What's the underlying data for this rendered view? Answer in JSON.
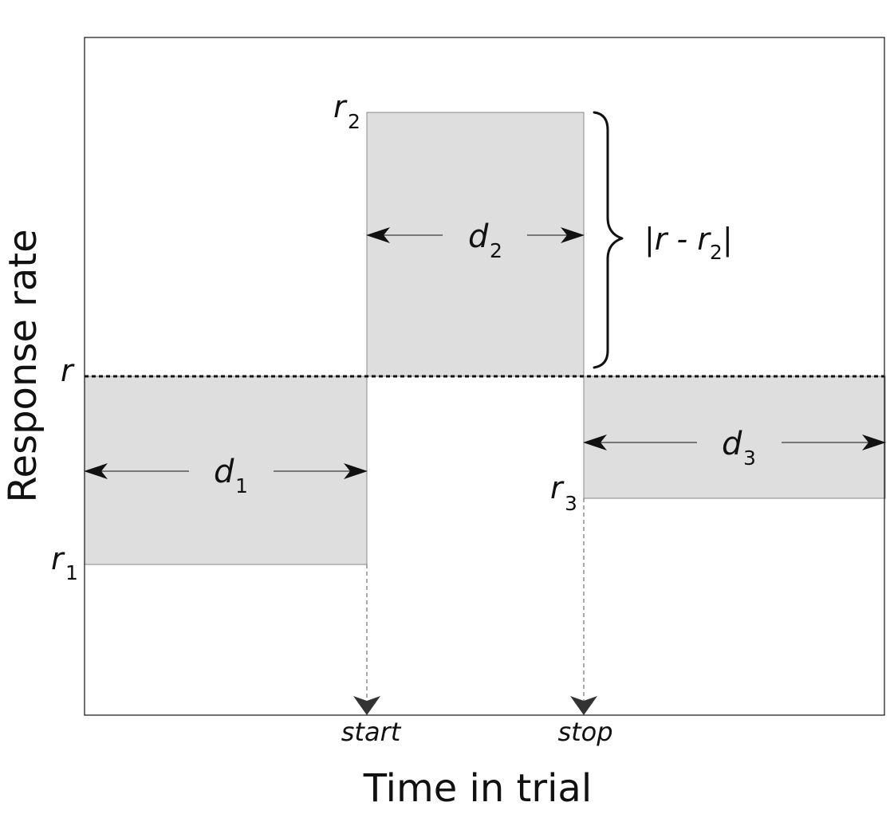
{
  "axes": {
    "xlabel": "Time in trial",
    "ylabel": "Response rate"
  },
  "rate_labels": {
    "r": {
      "main": "r",
      "sub": ""
    },
    "r1": {
      "main": "r",
      "sub": "1"
    },
    "r2": {
      "main": "r",
      "sub": "2"
    },
    "r3": {
      "main": "r",
      "sub": "3"
    }
  },
  "durations": {
    "d1": {
      "main": "d",
      "sub": "1"
    },
    "d2": {
      "main": "d",
      "sub": "2"
    },
    "d3": {
      "main": "d",
      "sub": "3"
    }
  },
  "brace_label": {
    "prefix": "|r - r",
    "sub": "2",
    "suffix": "|"
  },
  "time_markers": {
    "start": "start",
    "stop": "stop"
  },
  "colors": {
    "shaded_region": "#dedede",
    "line": "#111111",
    "dashed_guide": "#555555"
  }
}
